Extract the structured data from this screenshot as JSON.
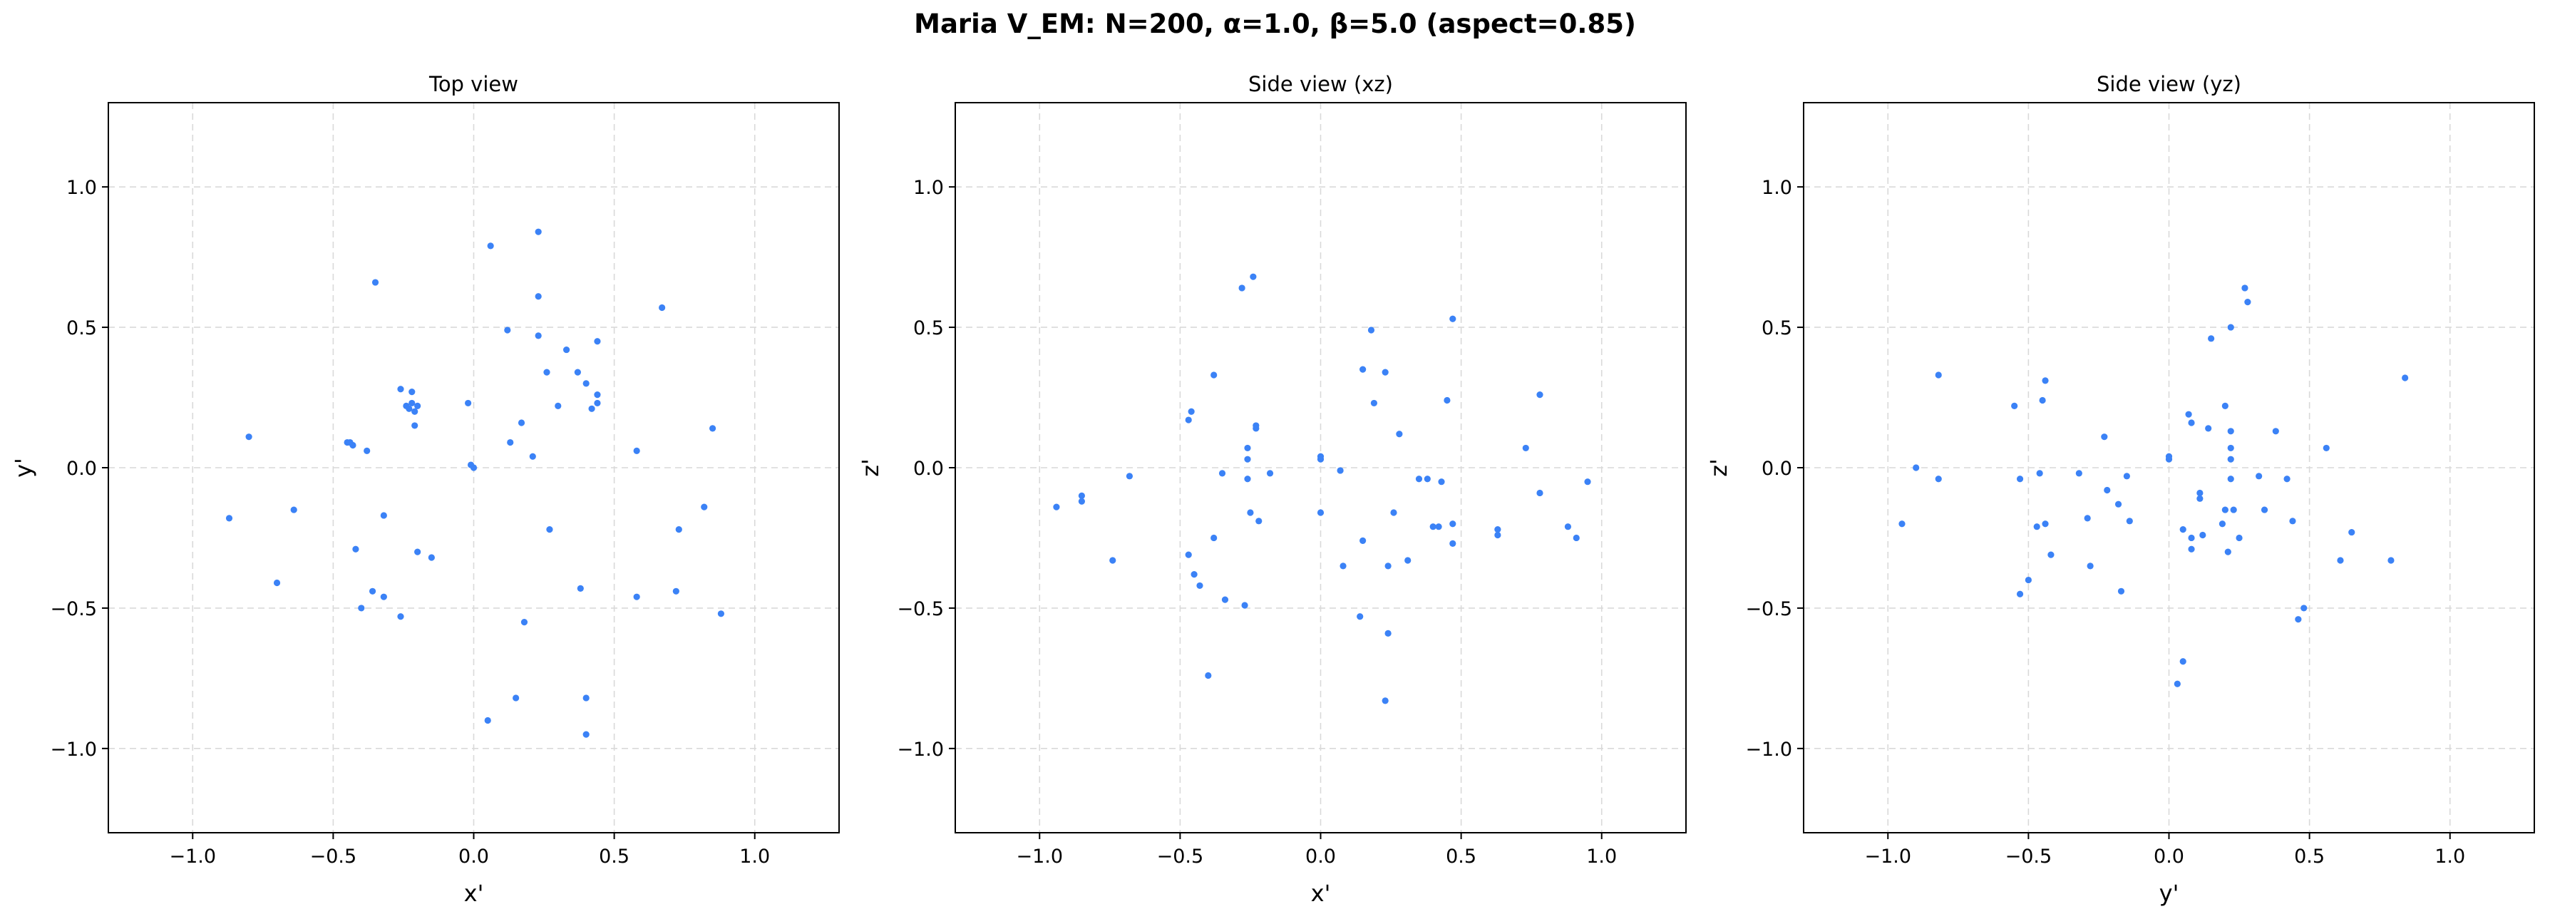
{
  "figure": {
    "suptitle": "Maria V_EM: N=200, α=1.0, β=5.0  (aspect=0.85)",
    "point_color": "#3b82f6",
    "grid_color": "#d9d9d9"
  },
  "chart_data": [
    {
      "type": "scatter",
      "title": "Top view",
      "xlabel": "x'",
      "ylabel": "y'",
      "xlim": [
        -1.3,
        1.3
      ],
      "ylim": [
        -1.3,
        1.3
      ],
      "xticks": [
        -1.0,
        -0.5,
        0.0,
        0.5,
        1.0
      ],
      "yticks": [
        -1.0,
        -0.5,
        0.0,
        0.5,
        1.0
      ],
      "xtick_labels": [
        "−1.0",
        "−0.5",
        "0.0",
        "0.5",
        "1.0"
      ],
      "ytick_labels": [
        "−1.0",
        "−0.5",
        "0.0",
        "0.5",
        "1.0"
      ],
      "grid": true,
      "points": [
        [
          -0.87,
          -0.18
        ],
        [
          -0.8,
          0.11
        ],
        [
          -0.7,
          -0.41
        ],
        [
          -0.64,
          -0.15
        ],
        [
          -0.45,
          0.09
        ],
        [
          -0.44,
          0.09
        ],
        [
          -0.43,
          0.08
        ],
        [
          -0.42,
          -0.29
        ],
        [
          -0.4,
          -0.5
        ],
        [
          -0.38,
          0.06
        ],
        [
          -0.36,
          -0.44
        ],
        [
          -0.35,
          0.66
        ],
        [
          -0.32,
          -0.17
        ],
        [
          -0.32,
          -0.46
        ],
        [
          -0.26,
          0.28
        ],
        [
          -0.26,
          -0.53
        ],
        [
          -0.24,
          0.22
        ],
        [
          -0.23,
          0.21
        ],
        [
          -0.22,
          0.23
        ],
        [
          -0.22,
          0.27
        ],
        [
          -0.21,
          0.2
        ],
        [
          -0.21,
          0.15
        ],
        [
          -0.2,
          0.22
        ],
        [
          -0.2,
          -0.3
        ],
        [
          -0.15,
          -0.32
        ],
        [
          -0.02,
          0.23
        ],
        [
          -0.01,
          0.01
        ],
        [
          0.0,
          0.0
        ],
        [
          0.05,
          -0.9
        ],
        [
          0.06,
          0.79
        ],
        [
          0.12,
          0.49
        ],
        [
          0.13,
          0.09
        ],
        [
          0.15,
          -0.82
        ],
        [
          0.17,
          0.16
        ],
        [
          0.18,
          -0.55
        ],
        [
          0.21,
          0.04
        ],
        [
          0.23,
          0.84
        ],
        [
          0.23,
          0.61
        ],
        [
          0.23,
          0.47
        ],
        [
          0.26,
          0.34
        ],
        [
          0.27,
          -0.22
        ],
        [
          0.3,
          0.22
        ],
        [
          0.33,
          0.42
        ],
        [
          0.37,
          0.34
        ],
        [
          0.38,
          -0.43
        ],
        [
          0.4,
          0.3
        ],
        [
          0.4,
          -0.82
        ],
        [
          0.4,
          -0.95
        ],
        [
          0.42,
          0.21
        ],
        [
          0.44,
          0.45
        ],
        [
          0.44,
          0.26
        ],
        [
          0.44,
          0.23
        ],
        [
          0.58,
          0.06
        ],
        [
          0.58,
          -0.46
        ],
        [
          0.67,
          0.57
        ],
        [
          0.72,
          -0.44
        ],
        [
          0.73,
          -0.22
        ],
        [
          0.82,
          -0.14
        ],
        [
          0.85,
          0.14
        ],
        [
          0.88,
          -0.52
        ]
      ]
    },
    {
      "type": "scatter",
      "title": "Side view (xz)",
      "xlabel": "x'",
      "ylabel": "z'",
      "xlim": [
        -1.3,
        1.3
      ],
      "ylim": [
        -1.3,
        1.3
      ],
      "xticks": [
        -1.0,
        -0.5,
        0.0,
        0.5,
        1.0
      ],
      "yticks": [
        -1.0,
        -0.5,
        0.0,
        0.5,
        1.0
      ],
      "xtick_labels": [
        "−1.0",
        "−0.5",
        "0.0",
        "0.5",
        "1.0"
      ],
      "ytick_labels": [
        "−1.0",
        "−0.5",
        "0.0",
        "0.5",
        "1.0"
      ],
      "grid": true,
      "points": [
        [
          -0.94,
          -0.14
        ],
        [
          -0.85,
          -0.1
        ],
        [
          -0.85,
          -0.12
        ],
        [
          -0.74,
          -0.33
        ],
        [
          -0.68,
          -0.03
        ],
        [
          -0.47,
          0.17
        ],
        [
          -0.46,
          0.2
        ],
        [
          -0.47,
          -0.31
        ],
        [
          -0.45,
          -0.38
        ],
        [
          -0.43,
          -0.42
        ],
        [
          -0.4,
          -0.74
        ],
        [
          -0.38,
          0.33
        ],
        [
          -0.38,
          -0.25
        ],
        [
          -0.35,
          -0.02
        ],
        [
          -0.34,
          -0.47
        ],
        [
          -0.28,
          0.64
        ],
        [
          -0.27,
          -0.49
        ],
        [
          -0.26,
          0.07
        ],
        [
          -0.26,
          0.03
        ],
        [
          -0.26,
          -0.04
        ],
        [
          -0.25,
          -0.16
        ],
        [
          -0.24,
          0.68
        ],
        [
          -0.23,
          0.15
        ],
        [
          -0.23,
          0.14
        ],
        [
          -0.22,
          -0.19
        ],
        [
          -0.18,
          -0.02
        ],
        [
          0.0,
          0.04
        ],
        [
          0.0,
          0.03
        ],
        [
          0.0,
          -0.16
        ],
        [
          0.07,
          -0.01
        ],
        [
          0.08,
          -0.35
        ],
        [
          0.14,
          -0.53
        ],
        [
          0.15,
          0.35
        ],
        [
          0.15,
          -0.26
        ],
        [
          0.18,
          0.49
        ],
        [
          0.19,
          0.23
        ],
        [
          0.23,
          0.34
        ],
        [
          0.23,
          -0.83
        ],
        [
          0.24,
          -0.59
        ],
        [
          0.24,
          -0.35
        ],
        [
          0.26,
          -0.16
        ],
        [
          0.28,
          0.12
        ],
        [
          0.31,
          -0.33
        ],
        [
          0.35,
          -0.04
        ],
        [
          0.38,
          -0.04
        ],
        [
          0.4,
          -0.21
        ],
        [
          0.42,
          -0.21
        ],
        [
          0.43,
          -0.05
        ],
        [
          0.45,
          0.24
        ],
        [
          0.47,
          0.53
        ],
        [
          0.47,
          -0.2
        ],
        [
          0.47,
          -0.27
        ],
        [
          0.63,
          -0.22
        ],
        [
          0.63,
          -0.24
        ],
        [
          0.73,
          0.07
        ],
        [
          0.78,
          0.26
        ],
        [
          0.78,
          -0.09
        ],
        [
          0.88,
          -0.21
        ],
        [
          0.91,
          -0.25
        ],
        [
          0.95,
          -0.05
        ]
      ]
    },
    {
      "type": "scatter",
      "title": "Side view (yz)",
      "xlabel": "y'",
      "ylabel": "z'",
      "xlim": [
        -1.3,
        1.3
      ],
      "ylim": [
        -1.3,
        1.3
      ],
      "xticks": [
        -1.0,
        -0.5,
        0.0,
        0.5,
        1.0
      ],
      "yticks": [
        -1.0,
        -0.5,
        0.0,
        0.5,
        1.0
      ],
      "xtick_labels": [
        "−1.0",
        "−0.5",
        "0.0",
        "0.5",
        "1.0"
      ],
      "ytick_labels": [
        "−1.0",
        "−0.5",
        "0.0",
        "0.5",
        "1.0"
      ],
      "grid": true,
      "points": [
        [
          -0.95,
          -0.2
        ],
        [
          -0.9,
          -0.0
        ],
        [
          -0.82,
          0.33
        ],
        [
          -0.82,
          -0.04
        ],
        [
          -0.55,
          0.22
        ],
        [
          -0.53,
          -0.04
        ],
        [
          -0.53,
          -0.45
        ],
        [
          -0.5,
          -0.4
        ],
        [
          -0.47,
          -0.21
        ],
        [
          -0.46,
          -0.02
        ],
        [
          -0.45,
          0.24
        ],
        [
          -0.44,
          0.31
        ],
        [
          -0.44,
          -0.2
        ],
        [
          -0.42,
          -0.31
        ],
        [
          -0.32,
          -0.02
        ],
        [
          -0.29,
          -0.18
        ],
        [
          -0.28,
          -0.35
        ],
        [
          -0.23,
          0.11
        ],
        [
          -0.22,
          -0.08
        ],
        [
          -0.18,
          -0.13
        ],
        [
          -0.17,
          -0.44
        ],
        [
          -0.15,
          -0.03
        ],
        [
          -0.14,
          -0.19
        ],
        [
          0.0,
          0.04
        ],
        [
          0.0,
          0.03
        ],
        [
          0.03,
          -0.77
        ],
        [
          0.05,
          -0.69
        ],
        [
          0.05,
          -0.22
        ],
        [
          0.07,
          0.19
        ],
        [
          0.08,
          0.16
        ],
        [
          0.08,
          -0.25
        ],
        [
          0.08,
          -0.29
        ],
        [
          0.11,
          -0.09
        ],
        [
          0.11,
          -0.11
        ],
        [
          0.12,
          -0.24
        ],
        [
          0.14,
          0.14
        ],
        [
          0.15,
          0.46
        ],
        [
          0.19,
          -0.2
        ],
        [
          0.2,
          0.22
        ],
        [
          0.2,
          -0.15
        ],
        [
          0.21,
          -0.3
        ],
        [
          0.22,
          0.13
        ],
        [
          0.22,
          0.07
        ],
        [
          0.22,
          0.03
        ],
        [
          0.22,
          0.5
        ],
        [
          0.22,
          -0.04
        ],
        [
          0.23,
          -0.15
        ],
        [
          0.25,
          -0.25
        ],
        [
          0.27,
          0.64
        ],
        [
          0.28,
          0.59
        ],
        [
          0.32,
          -0.03
        ],
        [
          0.34,
          -0.15
        ],
        [
          0.38,
          0.13
        ],
        [
          0.42,
          -0.04
        ],
        [
          0.44,
          -0.19
        ],
        [
          0.46,
          -0.54
        ],
        [
          0.48,
          -0.5
        ],
        [
          0.56,
          0.07
        ],
        [
          0.61,
          -0.33
        ],
        [
          0.65,
          -0.23
        ],
        [
          0.79,
          -0.33
        ],
        [
          0.84,
          0.32
        ]
      ]
    }
  ]
}
